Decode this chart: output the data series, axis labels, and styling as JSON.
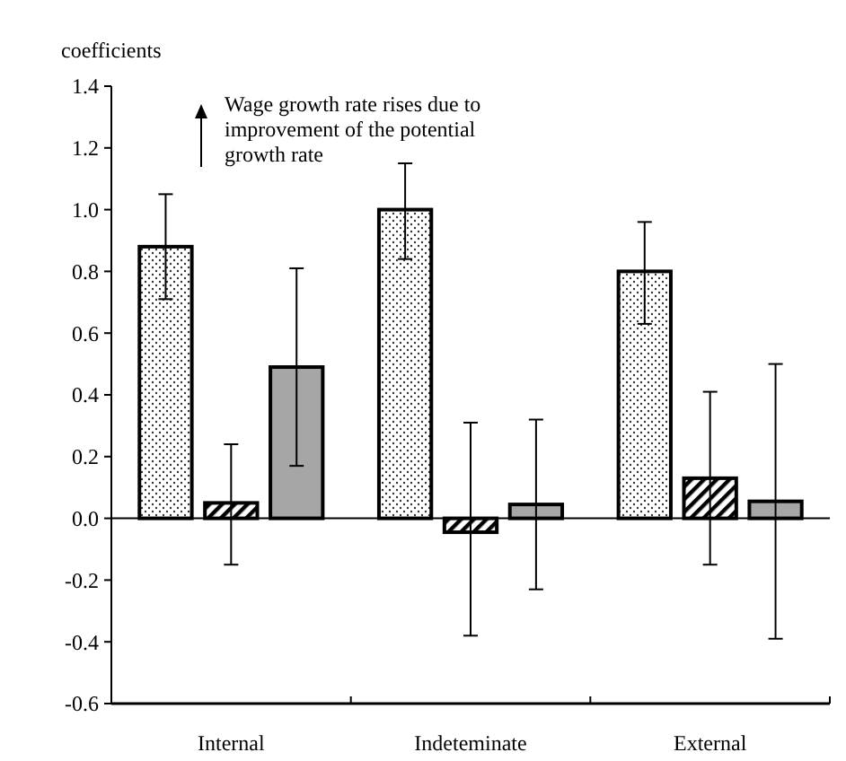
{
  "chart_data": {
    "type": "bar",
    "ylabel": "coefficients",
    "categories": [
      "Internal",
      "Indeteminate",
      "External"
    ],
    "series": [
      {
        "color": "#ffffff",
        "values": [
          0.88,
          1.0,
          0.8
        ],
        "errors": [
          [
            0.71,
            1.05
          ],
          [
            0.84,
            1.15
          ],
          [
            0.63,
            0.96
          ]
        ]
      },
      {
        "color": "#ffffff",
        "values": [
          0.05,
          -0.045,
          0.13
        ],
        "errors": [
          [
            -0.15,
            0.24
          ],
          [
            -0.38,
            0.31
          ],
          [
            -0.15,
            0.41
          ]
        ]
      },
      {
        "color": "#a6a6a6",
        "values": [
          0.49,
          0.045,
          0.055
        ],
        "errors": [
          [
            0.17,
            0.81
          ],
          [
            -0.23,
            0.32
          ],
          [
            -0.39,
            0.5
          ]
        ]
      }
    ],
    "ylim": [
      -0.6,
      1.4
    ],
    "yticks": [
      {
        "value": -0.6,
        "label": "-0.6"
      },
      {
        "value": -0.4,
        "label": "-0.4"
      },
      {
        "value": -0.2,
        "label": "-0.2"
      },
      {
        "value": 0,
        "label": "0.0"
      },
      {
        "value": 0.2,
        "label": "0.2"
      },
      {
        "value": 0.4,
        "label": "0.4"
      },
      {
        "value": 0.6,
        "label": "0.6"
      },
      {
        "value": 0.8,
        "label": "0.8"
      },
      {
        "value": 1,
        "label": "1.0"
      },
      {
        "value": 1.2,
        "label": "1.2"
      },
      {
        "value": 1.4,
        "label": "1.4"
      }
    ],
    "annotations": [
      "Wage growth rate rises due to improvement of the potential growth rate"
    ]
  }
}
